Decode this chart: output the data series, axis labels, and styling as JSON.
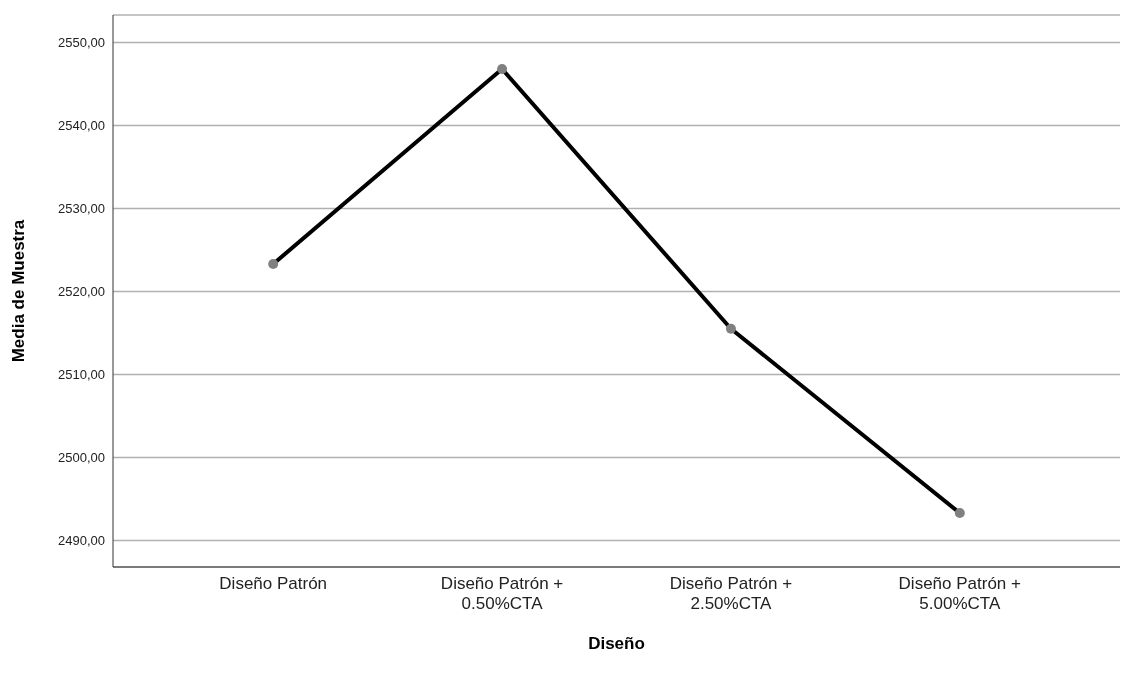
{
  "chart_data": {
    "type": "line",
    "xlabel": "Diseño",
    "ylabel": "Media de Muestra",
    "categories": [
      "Diseño Patrón",
      "Diseño Patrón + 0.50%CTA",
      "Diseño Patrón + 2.50%CTA",
      "Diseño Patrón + 5.00%CTA"
    ],
    "series": [
      {
        "color": "#000000",
        "values": [
          2523.3,
          2546.8,
          2515.5,
          2493.3
        ]
      }
    ],
    "ylim": [
      2486.8,
      2553.3
    ],
    "yticks": [
      {
        "value": 2490,
        "label": "2490,00"
      },
      {
        "value": 2500,
        "label": "2500,00"
      },
      {
        "value": 2510,
        "label": "2510,00"
      },
      {
        "value": 2520,
        "label": "2520,00"
      },
      {
        "value": 2530,
        "label": "2530,00"
      },
      {
        "value": 2540,
        "label": "2540,00"
      },
      {
        "value": 2550,
        "label": "2550,00"
      }
    ],
    "grid": "y",
    "marker": "circle",
    "line_style": "solid"
  }
}
